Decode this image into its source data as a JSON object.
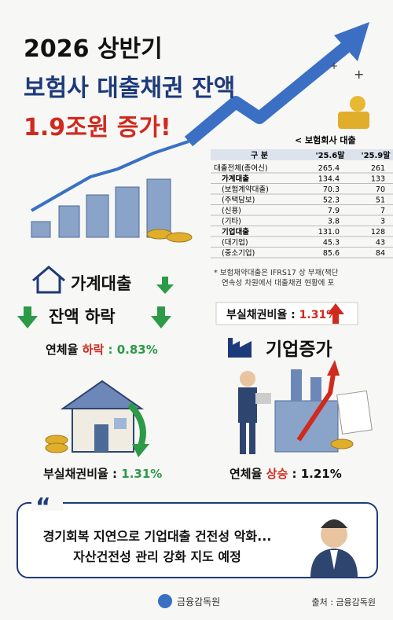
{
  "header": {
    "line1": "2026 상반기",
    "line2": "보험사 대출채권 잔액",
    "line3": "1.9조원 증가!"
  },
  "table": {
    "caption": "< 보험회사 대출",
    "columns": [
      "구 분",
      "'25.6말",
      "'25.9말"
    ],
    "rows": [
      [
        "대출전체(총여신)",
        "265.4",
        "261"
      ],
      [
        "가계대출",
        "134.4",
        "133"
      ],
      [
        "(보험계약대출)",
        "70.3",
        "70"
      ],
      [
        "(주택담보)",
        "52.3",
        "51"
      ],
      [
        "(신용)",
        "7.9",
        "7"
      ],
      [
        "(기타)",
        "3.8",
        "3"
      ],
      [
        "기업대출",
        "131.0",
        "128"
      ],
      [
        "(대기업)",
        "45.3",
        "43"
      ],
      [
        "(중소기업)",
        "85.6",
        "84"
      ]
    ],
    "notes": [
      "* 보험채약대출은 IFRS17 상 부채(책단",
      "연속성 차원에서 대출채권 현황에 포"
    ]
  },
  "household": {
    "title": "가계대출",
    "subtitle": "잔액 하락",
    "delinquency": {
      "label": "연체율",
      "trend": "하락",
      "value": ": 0.83%"
    },
    "npl": {
      "label": "부실채권비율 :",
      "value": "1.31%"
    }
  },
  "corporate": {
    "title": "기업증가",
    "npl": {
      "label": "부실채권비율 :",
      "value": "1.31%"
    },
    "delinquency": {
      "label": "연체율",
      "trend": "상승",
      "value": ": 1.21%"
    }
  },
  "quote": {
    "lines": [
      "경기회복 지연으로 기업대출 건전성 악화...",
      "자산건전성 관리 강화 지도 예정"
    ]
  },
  "footer": {
    "org": "금융감독원",
    "source": "출처 : 금융감독원"
  }
}
